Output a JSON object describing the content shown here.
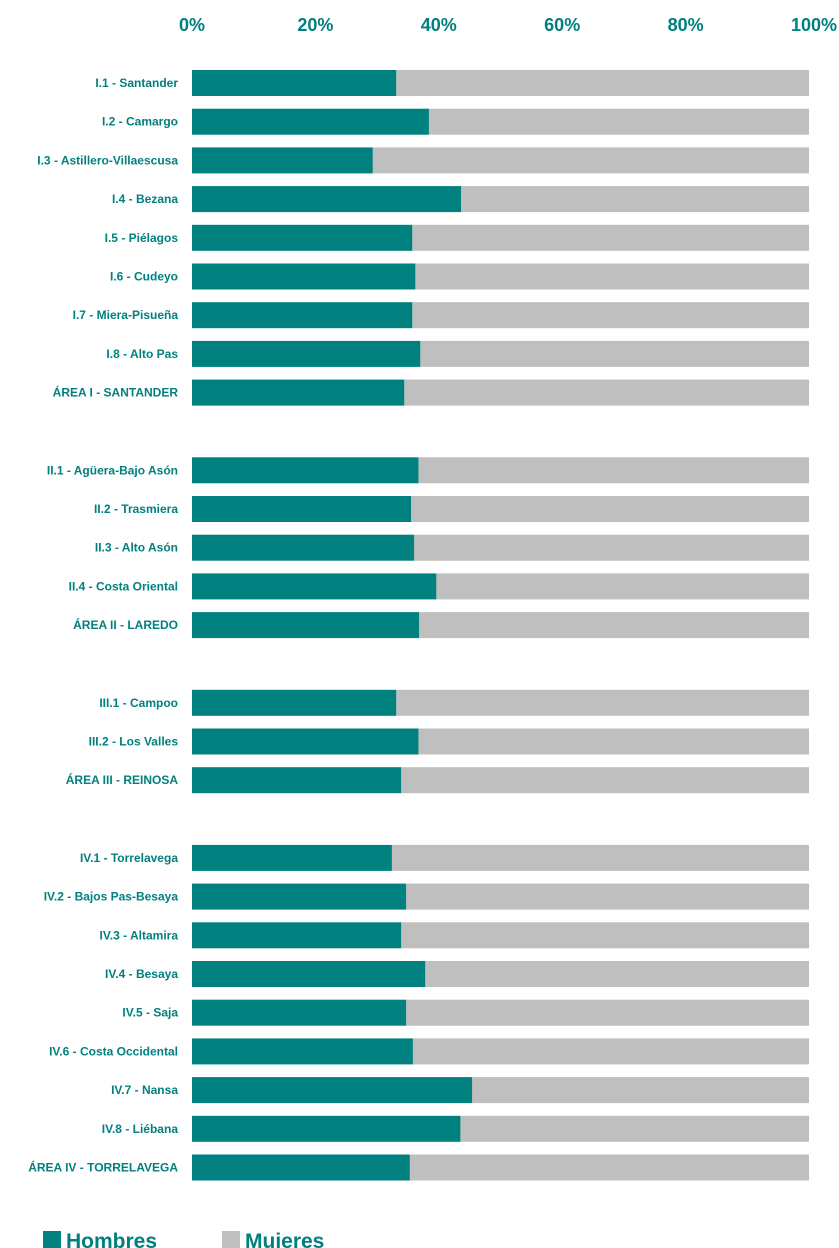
{
  "chart_data": {
    "type": "bar",
    "orientation": "horizontal",
    "stacked": true,
    "normalized": true,
    "title": "",
    "xlabel": "",
    "ylabel": "",
    "xlim": [
      0,
      100
    ],
    "x_ticks": [
      "0%",
      "20%",
      "40%",
      "60%",
      "80%",
      "100%"
    ],
    "x_axis_position": "top",
    "grid": false,
    "legend_position": "bottom-left",
    "colors": {
      "Hombres": "#00807f",
      "Mujeres": "#bfbfbf",
      "text": "#00807f"
    },
    "groups": [
      {
        "categories": [
          "I.1 - Santander",
          "I.2 - Camargo",
          "I.3 - Astillero-Villaescusa",
          "I.4 - Bezana",
          "I.5 - Piélagos",
          "I.6 - Cudeyo",
          "I.7 - Miera-Pisueña",
          "I.8 - Alto Pas",
          "ÁREA I - SANTANDER"
        ],
        "hombres": [
          33.1,
          38.4,
          29.3,
          43.6,
          35.7,
          36.2,
          35.7,
          37.0,
          34.4
        ]
      },
      {
        "categories": [
          "II.1 - Agüera-Bajo Asón",
          "II.2 - Trasmiera",
          "II.3 - Alto Asón",
          "II.4 - Costa Oriental",
          "ÁREA II - LAREDO"
        ],
        "hombres": [
          36.7,
          35.5,
          36.0,
          39.6,
          36.8
        ]
      },
      {
        "categories": [
          "III.1 - Campoo",
          "III.2 - Los Valles",
          "ÁREA III - REINOSA"
        ],
        "hombres": [
          33.1,
          36.7,
          33.9
        ]
      },
      {
        "categories": [
          "IV.1 - Torrelavega",
          "IV.2 - Bajos Pas-Besaya",
          "IV.3 - Altamira",
          "IV.4 - Besaya",
          "IV.5 - Saja",
          "IV.6 - Costa Occidental",
          "IV.7 - Nansa",
          "IV.8 - Liébana",
          "ÁREA IV - TORRELAVEGA"
        ],
        "hombres": [
          32.4,
          34.7,
          33.9,
          37.8,
          34.7,
          35.8,
          45.4,
          43.5,
          35.3
        ]
      }
    ],
    "series": [
      {
        "name": "Hombres"
      },
      {
        "name": "Mujeres"
      }
    ]
  }
}
